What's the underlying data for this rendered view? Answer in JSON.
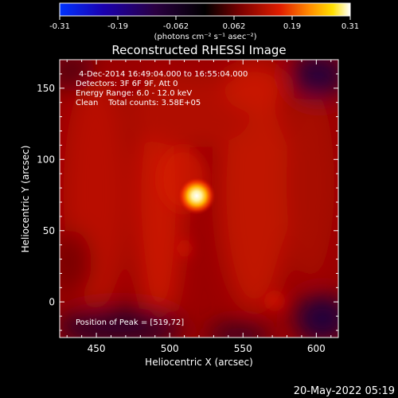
{
  "chart_data": {
    "type": "heatmap",
    "title": "Reconstructed RHESSI Image",
    "xlabel": "Heliocentric X (arcsec)",
    "ylabel": "Heliocentric Y (arcsec)",
    "xlim": [
      425,
      615
    ],
    "ylim": [
      -25,
      170
    ],
    "x_ticks": [
      450,
      500,
      550,
      600
    ],
    "y_ticks": [
      0,
      50,
      100,
      150
    ],
    "colorbar": {
      "label": "(photons cm⁻² s⁻¹ asec⁻²)",
      "range": [
        -0.31,
        0.31
      ],
      "ticks": [
        "-0.31",
        "-0.19",
        "-0.062",
        "0.062",
        "0.19",
        "0.31"
      ],
      "colormap": "blue-black-red-yellow-white"
    },
    "info_lines": [
      "4-Dec-2014 16:49:04.000 to 16:55:04.000",
      "Detectors: 3F 6F 9F, Att 0",
      "Energy Range: 6.0 - 12.0 keV",
      "Clean    Total counts: 3.58E+05"
    ],
    "peak_label": "Position of Peak = [519,72]",
    "peak": {
      "x": 519,
      "y": 72
    },
    "sources": [
      {
        "x": 519,
        "y": 72,
        "amplitude": 0.31
      },
      {
        "x": 572,
        "y": -2,
        "amplitude": 0.2
      },
      {
        "x": 510,
        "y": 38,
        "amplitude": 0.15
      }
    ]
  },
  "footer": {
    "timestamp": "20-May-2022 05:19"
  }
}
